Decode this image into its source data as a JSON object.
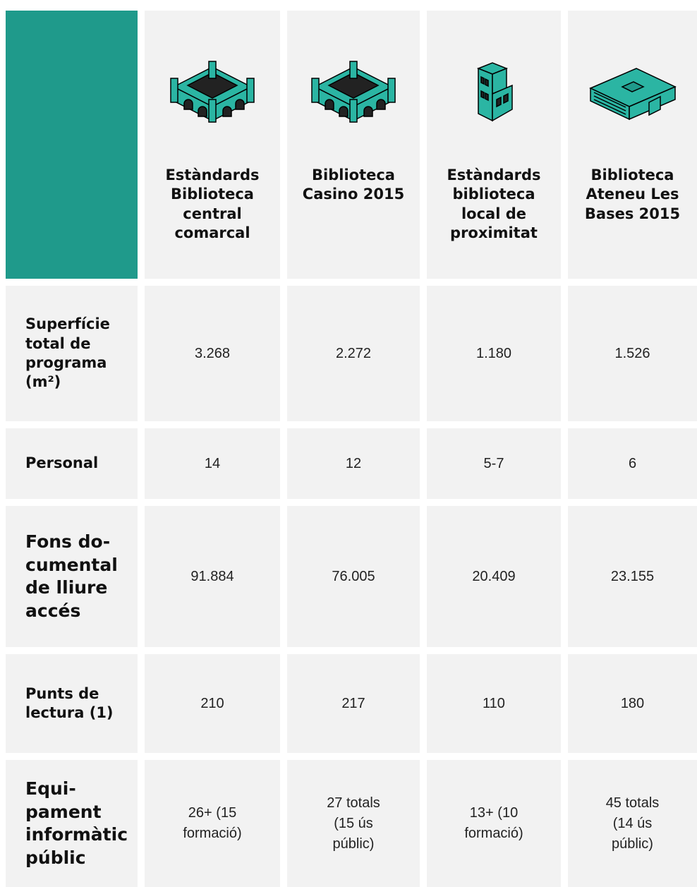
{
  "table": {
    "columns": [
      "Estàndards Biblioteca central comarcal",
      "Biblioteca Casino 2015",
      "Estàndards biblioteca local de proximitat",
      "Biblioteca Ateneu Les Bases 2015"
    ],
    "rows": [
      {
        "label": "Superfície total de programa (m²)",
        "values": [
          "3.268",
          "2.272",
          "1.180",
          "1.526"
        ]
      },
      {
        "label": "Personal",
        "values": [
          "14",
          "12",
          "5-7",
          "6"
        ]
      },
      {
        "label": "Fons do-cumental de lliure accés",
        "values": [
          "91.884",
          "76.005",
          "20.409",
          "23.155"
        ]
      },
      {
        "label": "Punts de lectura (1)",
        "values": [
          "210",
          "217",
          "110",
          "180"
        ]
      },
      {
        "label": "Equi-pament informàtic públic",
        "values": [
          "26+ (15 formació)",
          "27 totals (15 ús públic)",
          "13+ (10 formació)",
          "45 totals (14 ús públic)"
        ]
      }
    ]
  }
}
